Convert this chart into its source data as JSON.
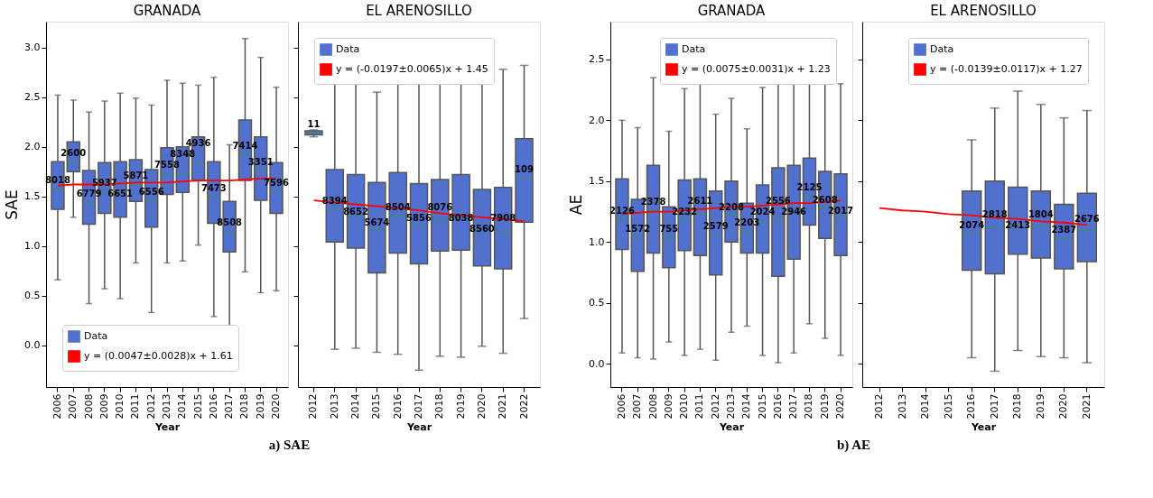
{
  "chart_data": [
    {
      "type": "box",
      "title": "GRANADA",
      "xlabel": "Year",
      "ylabel": "SAE",
      "legend": "bottom left",
      "categories": [
        "2006",
        "2007",
        "2008",
        "2009",
        "2010",
        "2011",
        "2012",
        "2013",
        "2014",
        "2015",
        "2016",
        "2017",
        "2018",
        "2019",
        "2020"
      ],
      "ylim": [
        -0.42,
        3.26
      ],
      "yticks": [
        {
          "value": 0,
          "label": "0.0"
        },
        0.5,
        {
          "value": 1,
          "label": "1.0"
        },
        1.5,
        {
          "value": 2,
          "label": "2.0"
        },
        2.5,
        {
          "value": 3,
          "label": "3.0"
        }
      ],
      "series": [
        {
          "name": "Data",
          "color": "#5271cf",
          "boxes": [
            {
              "low": 0.66,
              "q1": 1.37,
              "median": 1.58,
              "q3": 1.85,
              "high": 2.52
            },
            {
              "low": 1.29,
              "q1": 1.75,
              "median": 1.85,
              "q3": 2.05,
              "high": 2.47
            },
            {
              "low": 0.42,
              "q1": 1.22,
              "median": 1.44,
              "q3": 1.76,
              "high": 2.35
            },
            {
              "low": 0.57,
              "q1": 1.33,
              "median": 1.55,
              "q3": 1.84,
              "high": 2.46
            },
            {
              "low": 0.47,
              "q1": 1.29,
              "median": 1.53,
              "q3": 1.85,
              "high": 2.54
            },
            {
              "low": 0.83,
              "q1": 1.45,
              "median": 1.62,
              "q3": 1.87,
              "high": 2.49
            },
            {
              "low": 0.33,
              "q1": 1.19,
              "median": 1.46,
              "q3": 1.77,
              "high": 2.42
            },
            {
              "low": 0.83,
              "q1": 1.52,
              "median": 1.73,
              "q3": 1.99,
              "high": 2.67
            },
            {
              "low": 0.85,
              "q1": 1.54,
              "median": 1.73,
              "q3": 2.0,
              "high": 2.64
            },
            {
              "low": 1.01,
              "q1": 1.66,
              "median": 1.84,
              "q3": 2.1,
              "high": 2.62
            },
            {
              "low": 0.29,
              "q1": 1.23,
              "median": 1.5,
              "q3": 1.85,
              "high": 2.7
            },
            {
              "low": 0.19,
              "q1": 0.94,
              "median": 1.15,
              "q3": 1.45,
              "high": 2.02
            },
            {
              "low": 0.74,
              "q1": 1.66,
              "median": 1.92,
              "q3": 2.27,
              "high": 3.09
            },
            {
              "low": 0.53,
              "q1": 1.46,
              "median": 1.76,
              "q3": 2.1,
              "high": 2.9
            },
            {
              "low": 0.55,
              "q1": 1.33,
              "median": 1.55,
              "q3": 1.84,
              "high": 2.6
            }
          ]
        },
        {
          "name": "y = (0.0047±0.0028)x + 1.61",
          "type": "line",
          "color": "#ff0000",
          "values": [
            1.61,
            1.62,
            1.62,
            1.62,
            1.63,
            1.64,
            1.64,
            1.64,
            1.65,
            1.66,
            1.66,
            1.66,
            1.67,
            1.68,
            1.68
          ]
        }
      ],
      "annotations": [
        {
          "text": "8018",
          "x": "2006",
          "y": 1.58
        },
        {
          "text": "2600",
          "x": "2007",
          "y": 1.85
        },
        {
          "text": "6779",
          "x": "2008",
          "y": 1.44
        },
        {
          "text": "5937",
          "x": "2009",
          "y": 1.55
        },
        {
          "text": "6651",
          "x": "2010",
          "y": 1.53
        },
        {
          "text": "5871",
          "x": "2011",
          "y": 1.62
        },
        {
          "text": "6556",
          "x": "2012",
          "y": 1.46
        },
        {
          "text": "7558",
          "x": "2013",
          "y": 1.73
        },
        {
          "text": "8348",
          "x": "2014",
          "y": 1.73
        },
        {
          "text": "4936",
          "x": "2015",
          "y": 1.84
        },
        {
          "text": "7473",
          "x": "2016",
          "y": 1.5
        },
        {
          "text": "8508",
          "x": "2017",
          "y": 1.15
        },
        {
          "text": "7414",
          "x": "2018",
          "y": 1.92
        },
        {
          "text": "3351",
          "x": "2019",
          "y": 1.76
        },
        {
          "text": "7596",
          "x": "2020",
          "y": 1.55
        },
        "a) SAE"
      ]
    },
    {
      "type": "box",
      "title": "EL ARENOSILLO",
      "xlabel": "Year",
      "legend": "top left",
      "tick_labels": "x",
      "categories": [
        "2012",
        "2013",
        "2014",
        "2015",
        "2016",
        "2017",
        "2018",
        "2019",
        "2020",
        "2021",
        "2022"
      ],
      "ylim": [
        -0.42,
        3.26
      ],
      "yticks": [
        0,
        0.5,
        1,
        1.5,
        2,
        2.5,
        3
      ],
      "series": [
        {
          "name": "Data",
          "color": "#5271cf",
          "boxes": [
            {
              "low": 2.1,
              "q1": 2.12,
              "median": 2.14,
              "q3": 2.16,
              "high": 2.17
            },
            {
              "low": -0.04,
              "q1": 1.04,
              "median": 1.37,
              "q3": 1.77,
              "high": 2.82
            },
            {
              "low": -0.03,
              "q1": 0.98,
              "median": 1.3,
              "q3": 1.72,
              "high": 2.71
            },
            {
              "low": -0.07,
              "q1": 0.73,
              "median": 1.17,
              "q3": 1.64,
              "high": 2.55
            },
            {
              "low": -0.09,
              "q1": 0.93,
              "median": 1.31,
              "q3": 1.74,
              "high": 2.87
            },
            {
              "low": -0.25,
              "q1": 0.82,
              "median": 1.2,
              "q3": 1.63,
              "high": 2.63
            },
            {
              "low": -0.11,
              "q1": 0.95,
              "median": 1.26,
              "q3": 1.67,
              "high": 2.67
            },
            {
              "low": -0.12,
              "q1": 0.96,
              "median": 1.29,
              "q3": 1.72,
              "high": 2.65
            },
            {
              "low": -0.01,
              "q1": 0.8,
              "median": 1.17,
              "q3": 1.57,
              "high": 2.69
            },
            {
              "low": -0.08,
              "q1": 0.77,
              "median": 1.15,
              "q3": 1.59,
              "high": 2.78
            },
            {
              "low": 0.27,
              "q1": 1.24,
              "median": 1.69,
              "q3": 2.08,
              "high": 2.82
            }
          ]
        },
        {
          "name": "y = (-0.0197±0.0065)x + 1.45",
          "type": "line",
          "color": "#ff0000",
          "values": [
            1.46,
            1.44,
            1.42,
            1.4,
            1.38,
            1.36,
            1.33,
            1.31,
            1.29,
            1.27,
            1.25
          ]
        }
      ],
      "annotations": [
        {
          "text": "11",
          "x": "2012",
          "y": 2.14
        },
        {
          "text": "8394",
          "x": "2013",
          "y": 1.37
        },
        {
          "text": "8652",
          "x": "2014",
          "y": 1.3
        },
        {
          "text": "5674",
          "x": "2015",
          "y": 1.17
        },
        {
          "text": "8504",
          "x": "2016",
          "y": 1.31
        },
        {
          "text": "5856",
          "x": "2017",
          "y": 1.2
        },
        {
          "text": "8076",
          "x": "2018",
          "y": 1.26
        },
        {
          "text": "8038",
          "x": "2019",
          "y": 1.29
        },
        {
          "text": "8560",
          "x": "2020",
          "y": 1.17
        },
        {
          "text": "7908",
          "x": "2021",
          "y": 1.15
        },
        {
          "text": "109",
          "x": "2022",
          "y": 1.69
        }
      ]
    },
    {
      "type": "box",
      "title": "GRANADA",
      "xlabel": "Year",
      "ylabel": "AE",
      "legend": "top right",
      "categories": [
        "2006",
        "2007",
        "2008",
        "2009",
        "2010",
        "2011",
        "2012",
        "2013",
        "2014",
        "2015",
        "2016",
        "2017",
        "2018",
        "2019",
        "2020"
      ],
      "ylim": [
        -0.19,
        2.81
      ],
      "yticks": [
        {
          "value": 0,
          "label": "0.0"
        },
        0.5,
        {
          "value": 1,
          "label": "1.0"
        },
        1.5,
        {
          "value": 2,
          "label": "2.0"
        },
        2.5
      ],
      "series": [
        {
          "name": "Data",
          "color": "#5271cf",
          "boxes": [
            {
              "low": 0.09,
              "q1": 0.94,
              "median": 1.19,
              "q3": 1.52,
              "high": 2.0
            },
            {
              "low": 0.05,
              "q1": 0.76,
              "median": 1.04,
              "q3": 1.35,
              "high": 1.94
            },
            {
              "low": 0.04,
              "q1": 0.91,
              "median": 1.26,
              "q3": 1.63,
              "high": 2.35
            },
            {
              "low": 0.18,
              "q1": 0.79,
              "median": 1.04,
              "q3": 1.29,
              "high": 1.91
            },
            {
              "low": 0.07,
              "q1": 0.93,
              "median": 1.18,
              "q3": 1.51,
              "high": 2.26
            },
            {
              "low": 0.12,
              "q1": 0.89,
              "median": 1.23,
              "q3": 1.52,
              "high": 2.42
            },
            {
              "low": 0.03,
              "q1": 0.73,
              "median": 1.06,
              "q3": 1.42,
              "high": 2.05
            },
            {
              "low": 0.26,
              "q1": 1.0,
              "median": 1.22,
              "q3": 1.5,
              "high": 2.18
            },
            {
              "low": 0.31,
              "q1": 0.91,
              "median": 1.09,
              "q3": 1.32,
              "high": 1.93
            },
            {
              "low": 0.07,
              "q1": 0.91,
              "median": 1.16,
              "q3": 1.47,
              "high": 2.27
            },
            {
              "low": 0.01,
              "q1": 0.72,
              "median": 1.18,
              "q3": 1.61,
              "high": 2.67
            },
            {
              "low": 0.09,
              "q1": 0.86,
              "median": 1.25,
              "q3": 1.63,
              "high": 2.59
            },
            {
              "low": 0.33,
              "q1": 1.14,
              "median": 1.38,
              "q3": 1.69,
              "high": 2.5
            },
            {
              "low": 0.21,
              "q1": 1.03,
              "median": 1.28,
              "q3": 1.58,
              "high": 2.4
            },
            {
              "low": 0.07,
              "q1": 0.89,
              "median": 1.21,
              "q3": 1.56,
              "high": 2.3
            }
          ]
        },
        {
          "name": "y = (0.0075±0.0031)x + 1.23",
          "type": "line",
          "color": "#ff0000",
          "values": [
            1.23,
            1.24,
            1.25,
            1.25,
            1.26,
            1.27,
            1.28,
            1.29,
            1.29,
            1.3,
            1.31,
            1.32,
            1.32,
            1.33,
            1.34
          ]
        }
      ],
      "annotations": [
        {
          "text": "2126",
          "x": "2006",
          "y": 1.19
        },
        {
          "text": "1572",
          "x": "2007",
          "y": 1.04
        },
        {
          "text": "2378",
          "x": "2008",
          "y": 1.26
        },
        {
          "text": "755",
          "x": "2009",
          "y": 1.04
        },
        {
          "text": "2232",
          "x": "2010",
          "y": 1.18
        },
        {
          "text": "2611",
          "x": "2011",
          "y": 1.23
        },
        {
          "text": "2579",
          "x": "2012",
          "y": 1.06
        },
        {
          "text": "2208",
          "x": "2013",
          "y": 1.22
        },
        {
          "text": "2203",
          "x": "2014",
          "y": 1.09
        },
        {
          "text": "2024",
          "x": "2015",
          "y": 1.16
        },
        {
          "text": "2556",
          "x": "2016",
          "y": 1.18
        },
        {
          "text": "2946",
          "x": "2017",
          "y": 1.25
        },
        {
          "text": "2125",
          "x": "2018",
          "y": 1.38
        },
        {
          "text": "2608",
          "x": "2019",
          "y": 1.28
        },
        {
          "text": "2017",
          "x": "2020",
          "y": 1.21
        },
        "b) AE"
      ]
    },
    {
      "type": "box",
      "title": "EL ARENOSILLO",
      "xlabel": "Year",
      "legend": "top right",
      "tick_labels": "x",
      "categories": [
        "2012",
        "2013",
        "2014",
        "2015",
        "2016",
        "2017",
        "2018",
        "2019",
        "2020",
        "2021"
      ],
      "ylim": [
        -0.19,
        2.81
      ],
      "yticks": [
        0,
        0.5,
        1,
        1.5,
        2,
        2.5
      ],
      "series": [
        {
          "name": "Data",
          "color": "#5271cf",
          "boxes": [
            null,
            null,
            null,
            null,
            {
              "low": 0.05,
              "q1": 0.77,
              "median": 1.07,
              "q3": 1.42,
              "high": 1.84
            },
            {
              "low": -0.06,
              "q1": 0.74,
              "median": 1.12,
              "q3": 1.5,
              "high": 2.1
            },
            {
              "low": 0.11,
              "q1": 0.9,
              "median": 1.14,
              "q3": 1.45,
              "high": 2.24
            },
            {
              "low": 0.06,
              "q1": 0.87,
              "median": 1.13,
              "q3": 1.42,
              "high": 2.13
            },
            {
              "low": 0.05,
              "q1": 0.78,
              "median": 1.03,
              "q3": 1.31,
              "high": 2.02
            },
            {
              "low": 0.01,
              "q1": 0.84,
              "median": 1.1,
              "q3": 1.4,
              "high": 2.08
            }
          ]
        },
        {
          "name": "y = (-0.0139±0.0117)x + 1.27",
          "type": "line",
          "color": "#ff0000",
          "values": [
            1.28,
            1.26,
            1.25,
            1.23,
            1.22,
            1.2,
            1.19,
            1.17,
            1.16,
            1.14
          ]
        }
      ],
      "annotations": [
        {
          "text": "2074",
          "x": "2016",
          "y": 1.07
        },
        {
          "text": "2818",
          "x": "2017",
          "y": 1.12
        },
        {
          "text": "2413",
          "x": "2018",
          "y": 1.14
        },
        {
          "text": "1804",
          "x": "2019",
          "y": 1.13
        },
        {
          "text": "2387",
          "x": "2020",
          "y": 1.03
        },
        {
          "text": "2676",
          "x": "2021",
          "y": 1.1
        }
      ]
    }
  ]
}
